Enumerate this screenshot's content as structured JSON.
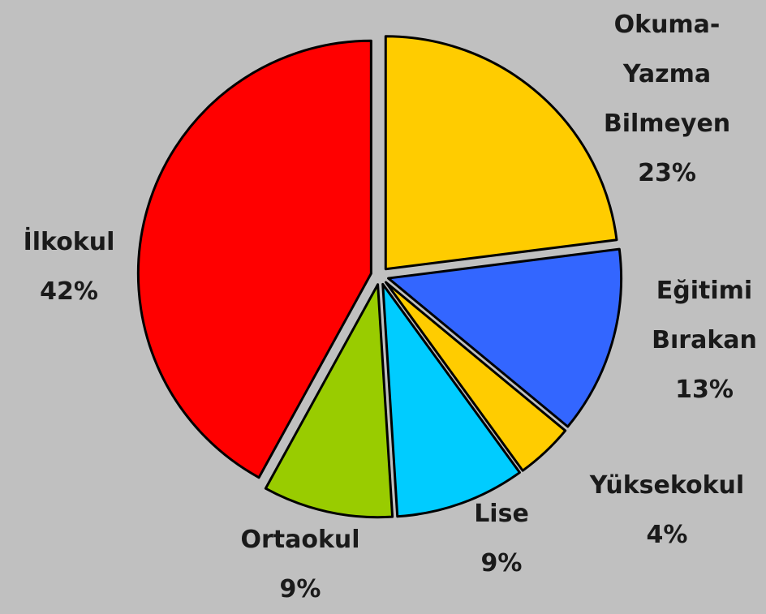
{
  "chart_data": {
    "type": "pie",
    "categories": [
      "Okuma-\nYazma\nBilmeyen",
      "Eğitimi\nBırakan",
      "Yüksekokul",
      "Lise",
      "Ortaokul",
      "İlkokul"
    ],
    "values": [
      23,
      13,
      4,
      9,
      9,
      42
    ],
    "value_labels": [
      "23%",
      "13%",
      "4%",
      "9%",
      "9%",
      "42%"
    ],
    "colors": [
      "#ffcc00",
      "#3366ff",
      "#ffcc00",
      "#00ccff",
      "#99cc00",
      "#ff0000"
    ]
  }
}
